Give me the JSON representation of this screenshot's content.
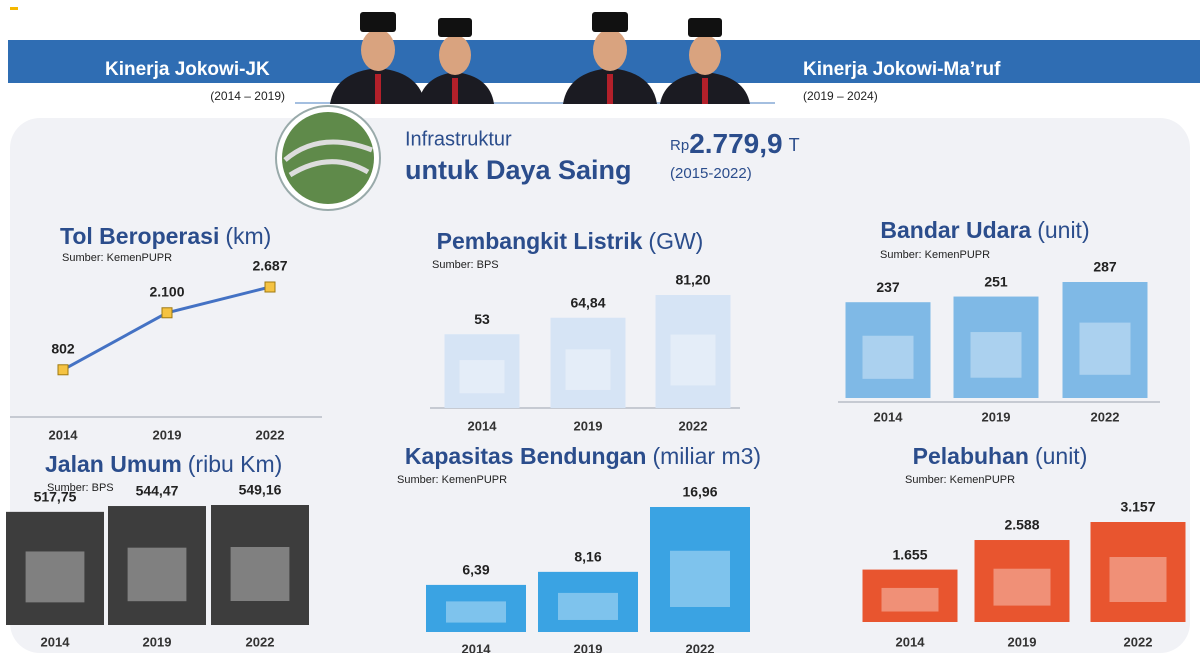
{
  "header": {
    "left_title": "Kinerja Jokowi-JK",
    "left_period": "(2014 – 2019)",
    "right_title": "Kinerja Jokowi-Ma’ruf",
    "right_period": "(2019 – 2024)"
  },
  "summary": {
    "line1": "Infrastruktur",
    "line2": "untuk Daya Saing",
    "currency": "Rp",
    "amount": "2.779,9",
    "unit": "T",
    "period": "(2015-2022)"
  },
  "chart_data": [
    {
      "type": "line",
      "title": "Tol Beroperasi",
      "unit": "(km)",
      "source": "Sumber: KemenPUPR",
      "categories": [
        "2014",
        "2019",
        "2022"
      ],
      "values": [
        802,
        2100,
        2687
      ],
      "value_labels": [
        "802",
        "2.100",
        "2.687"
      ],
      "color": "#4472c4",
      "marker_color": "#f5c342"
    },
    {
      "type": "bar",
      "title": "Pembangkit Listrik",
      "unit": "(GW)",
      "source": "Sumber: BPS",
      "categories": [
        "2014",
        "2019",
        "2022"
      ],
      "values": [
        53,
        64.84,
        81.2
      ],
      "value_labels": [
        "53",
        "64,84",
        "81,20"
      ],
      "color": "#d6e4f5"
    },
    {
      "type": "bar",
      "title": "Bandar Udara",
      "unit": "(unit)",
      "source": "Sumber: KemenPUPR",
      "categories": [
        "2014",
        "2019",
        "2022"
      ],
      "values": [
        237,
        251,
        287
      ],
      "value_labels": [
        "237",
        "251",
        "287"
      ],
      "color": "#7fb9e6"
    },
    {
      "type": "bar",
      "title": "Jalan Umum",
      "unit": "(ribu Km)",
      "source": "Sumber: BPS",
      "categories": [
        "2014",
        "2019",
        "2022"
      ],
      "values": [
        517.75,
        544.47,
        549.16
      ],
      "value_labels": [
        "517,75",
        "544,47",
        "549,16"
      ],
      "color": "#3d3d3d"
    },
    {
      "type": "bar",
      "title": "Kapasitas Bendungan",
      "unit": "(miliar m3)",
      "source": "Sumber: KemenPUPR",
      "categories": [
        "2014",
        "2019",
        "2022"
      ],
      "values": [
        6.39,
        8.16,
        16.96
      ],
      "value_labels": [
        "6,39",
        "8,16",
        "16,96"
      ],
      "color": "#3aa3e3"
    },
    {
      "type": "bar",
      "title": "Pelabuhan",
      "unit": "(unit)",
      "source": "Sumber: KemenPUPR",
      "categories": [
        "2014",
        "2019",
        "2022"
      ],
      "values": [
        1655,
        2588,
        3157
      ],
      "value_labels": [
        "1.655",
        "2.588",
        "3.157"
      ],
      "color": "#e8552f"
    }
  ]
}
